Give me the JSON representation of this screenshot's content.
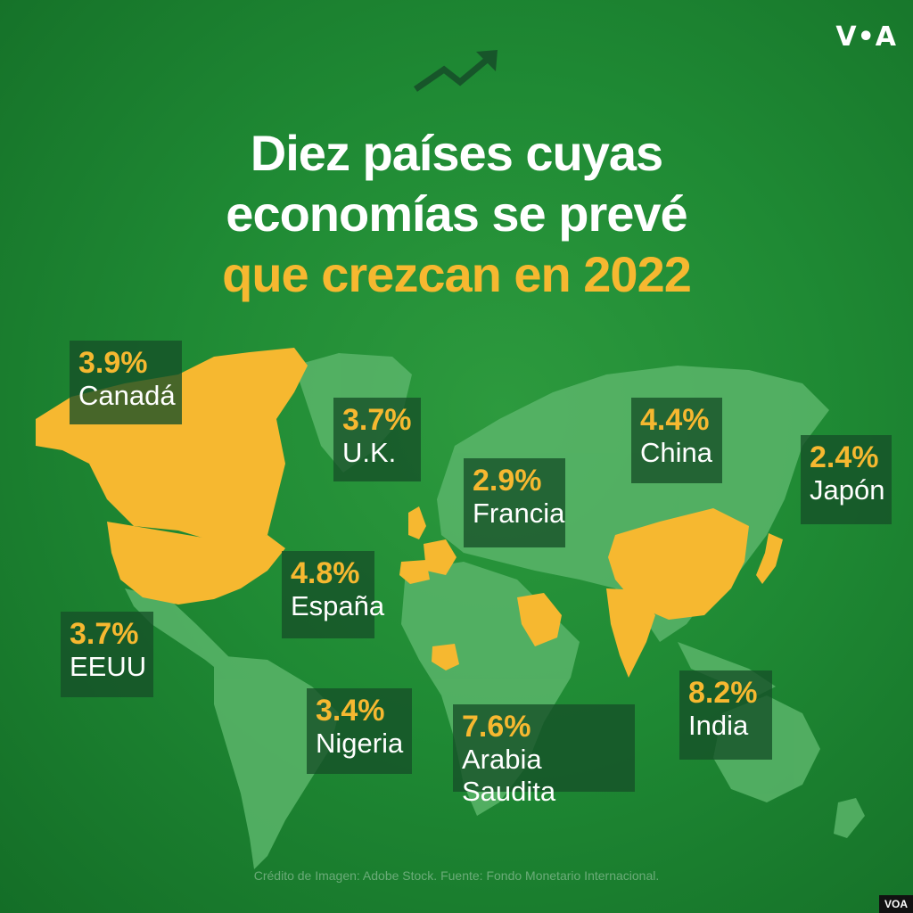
{
  "brand": "V•A",
  "corner_tag": "VOA",
  "title": {
    "line1": "Diez países cuyas",
    "line2": "economías se prevé",
    "line3": "que crezcan en 2022"
  },
  "countries": [
    {
      "pct": "3.9%",
      "name": "Canadá"
    },
    {
      "pct": "3.7%",
      "name": "U.K."
    },
    {
      "pct": "4.4%",
      "name": "China"
    },
    {
      "pct": "2.4%",
      "name": "Japón"
    },
    {
      "pct": "2.9%",
      "name": "Francia"
    },
    {
      "pct": "4.8%",
      "name": "España"
    },
    {
      "pct": "3.7%",
      "name": "EEUU"
    },
    {
      "pct": "3.4%",
      "name": "Nigeria"
    },
    {
      "pct": "7.6%",
      "name": "Arabia Saudita"
    },
    {
      "pct": "8.2%",
      "name": "India"
    }
  ],
  "credit": "Crédito de Imagen: Adobe Stock. Fuente: Fondo Monetario Internacional.",
  "colors": {
    "background": "#1f8a34",
    "land": "#4aa75a",
    "highlight": "#f6b830",
    "label_box": "#165028"
  }
}
